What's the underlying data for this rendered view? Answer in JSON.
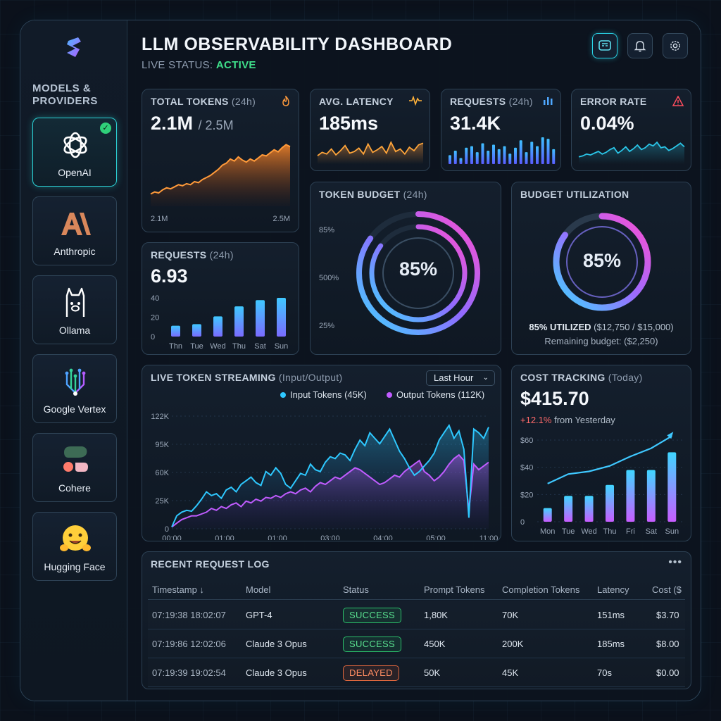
{
  "header": {
    "title": "LLM OBSERVABILITY DASHBOARD",
    "status_label": "LIVE STATUS:",
    "status_value": "ACTIVE"
  },
  "toolbar": {
    "icons": [
      "dashboard-icon",
      "bell-icon",
      "gear-icon"
    ]
  },
  "sidebar": {
    "title": "MODELS & PROVIDERS",
    "items": [
      {
        "label": "OpenAI",
        "active": true,
        "icon": "openai-icon"
      },
      {
        "label": "Anthropic",
        "icon": "anthropic-icon"
      },
      {
        "label": "Ollama",
        "icon": "ollama-icon"
      },
      {
        "label": "Google Vertex",
        "icon": "google-vertex-icon"
      },
      {
        "label": "Cohere",
        "icon": "cohere-icon"
      },
      {
        "label": "Hugging Face",
        "icon": "hugging-face-icon"
      }
    ]
  },
  "total_tokens": {
    "title": "TOTAL TOKENS",
    "period": "(24h)",
    "value": "2.1M",
    "total": "/ 2.5M",
    "axis_left": "2.1M",
    "axis_right": "2.5M",
    "series": [
      12,
      14,
      13,
      16,
      18,
      17,
      19,
      21,
      20,
      22,
      21,
      24,
      23,
      26,
      28,
      30,
      33,
      36,
      40,
      42,
      46,
      44,
      48,
      45,
      43,
      46,
      44,
      47,
      50,
      49,
      52,
      55,
      53,
      57,
      60,
      58
    ]
  },
  "latency": {
    "title": "AVG. LATENCY",
    "value": "185ms",
    "series": [
      10,
      14,
      12,
      18,
      11,
      16,
      22,
      13,
      15,
      19,
      12,
      24,
      14,
      17,
      21,
      13,
      26,
      15,
      18,
      12,
      20,
      16,
      23,
      25
    ]
  },
  "requests_top": {
    "title": "REQUESTS",
    "period": "(24h)",
    "value": "31.4K",
    "bars": [
      6,
      9,
      4,
      11,
      12,
      8,
      14,
      9,
      13,
      10,
      12,
      7,
      11,
      16,
      8,
      15,
      12,
      18,
      17,
      10
    ]
  },
  "error_rate": {
    "title": "ERROR RATE",
    "value": "0.04%",
    "series": [
      8,
      9,
      11,
      10,
      12,
      14,
      11,
      13,
      16,
      18,
      12,
      15,
      19,
      14,
      17,
      21,
      16,
      18,
      22,
      20,
      24,
      18,
      19,
      15,
      17,
      20,
      23,
      19
    ]
  },
  "requests_week": {
    "title": "REQUESTS",
    "period": "(24h)",
    "value": "6.93",
    "chart_data": {
      "type": "bar",
      "categories": [
        "Thn",
        "Tue",
        "Wed",
        "Thu",
        "Sat",
        "Sun"
      ],
      "values": [
        14,
        16,
        26,
        39,
        47,
        50
      ],
      "ylim": [
        0,
        50
      ],
      "yticks": [
        "40",
        "20",
        "0"
      ]
    }
  },
  "token_budget": {
    "title": "TOKEN BUDGET",
    "period": "(24h)",
    "value": "85%",
    "labels": [
      "85%",
      "500%",
      "25%"
    ],
    "percent": 85
  },
  "budget_util": {
    "title": "BUDGET UTILIZATION",
    "value": "85%",
    "utilized": "85% UTILIZED",
    "utilized_detail": "($12,750 / $15,000)",
    "remaining": "Remaining budget: ($2,250)",
    "percent": 85
  },
  "streaming": {
    "title": "LIVE TOKEN STREAMING",
    "subtitle": "(Input/Output)",
    "range": "Last Hour",
    "legend_input": "Input Tokens (45K)",
    "legend_output": "Output Tokens (112K)",
    "colors": {
      "input": "#2ec8ff",
      "output": "#c05cff"
    },
    "chart_data": {
      "type": "line",
      "yticks": [
        "122K",
        "95K",
        "60K",
        "25K",
        "0"
      ],
      "xticks": [
        "00:00",
        "01:00",
        "01:00",
        "03:00",
        "04:00",
        "05:00",
        "11:00"
      ],
      "ylim": [
        0,
        122
      ],
      "series": [
        {
          "name": "Input Tokens (45K)",
          "values": [
            2,
            14,
            18,
            20,
            19,
            25,
            32,
            40,
            36,
            38,
            33,
            42,
            45,
            40,
            48,
            52,
            56,
            50,
            47,
            62,
            58,
            66,
            60,
            48,
            44,
            52,
            60,
            58,
            70,
            64,
            62,
            72,
            78,
            76,
            82,
            80,
            74,
            86,
            96,
            90,
            104,
            98,
            92,
            100,
            108,
            96,
            84,
            76,
            66,
            58,
            62,
            68,
            74,
            82,
            96,
            104,
            112,
            98,
            106,
            86,
            12,
            108,
            104,
            98,
            110
          ]
        },
        {
          "name": "Output Tokens (112K)",
          "values": [
            2,
            6,
            10,
            12,
            14,
            14,
            16,
            18,
            22,
            20,
            24,
            22,
            26,
            28,
            24,
            30,
            28,
            32,
            30,
            34,
            33,
            36,
            34,
            38,
            40,
            38,
            42,
            44,
            40,
            46,
            50,
            48,
            52,
            56,
            54,
            58,
            62,
            66,
            64,
            60,
            56,
            52,
            48,
            50,
            54,
            58,
            56,
            62,
            66,
            70,
            74,
            62,
            58,
            52,
            56,
            62,
            70,
            76,
            80,
            74,
            20,
            70,
            64,
            68,
            72
          ]
        }
      ]
    }
  },
  "cost": {
    "title": "COST TRACKING",
    "period": "(Today)",
    "value": "$415.70",
    "delta": "+12.1%",
    "delta_text": "from Yesterday",
    "chart_data": {
      "type": "bar",
      "categories": [
        "Mon",
        "Tue",
        "Wed",
        "Thu",
        "Fri",
        "Sat",
        "Sun"
      ],
      "values": [
        10,
        19,
        19,
        27,
        38,
        38,
        51
      ],
      "line": [
        28,
        35,
        37,
        41,
        48,
        54,
        63
      ],
      "ylim": [
        0,
        60
      ],
      "yticks": [
        "$60",
        "$40",
        "$20",
        "0"
      ]
    }
  },
  "log": {
    "title": "RECENT REQUEST LOG",
    "columns": [
      "Timestamp ↓",
      "Model",
      "Status",
      "Prompt Tokens",
      "Completion Tokens",
      "Latency",
      "Cost ($"
    ],
    "rows": [
      {
        "timestamp": "07:19:38 18:02:07",
        "model": "GPT-4",
        "status": "SUCCESS",
        "prompt": "1,80K",
        "completion": "70K",
        "latency": "151ms",
        "cost": "$3.70"
      },
      {
        "timestamp": "07:19:86 12:02:06",
        "model": "Claude 3 Opus",
        "status": "SUCCESS",
        "prompt": "450K",
        "completion": "200K",
        "latency": "185ms",
        "cost": "$8.00"
      },
      {
        "timestamp": "07:19:39 19:02:54",
        "model": "Claude 3 Opus",
        "status": "DELAYED",
        "prompt": "50K",
        "completion": "45K",
        "latency": "70s",
        "cost": "$0.00"
      }
    ]
  }
}
